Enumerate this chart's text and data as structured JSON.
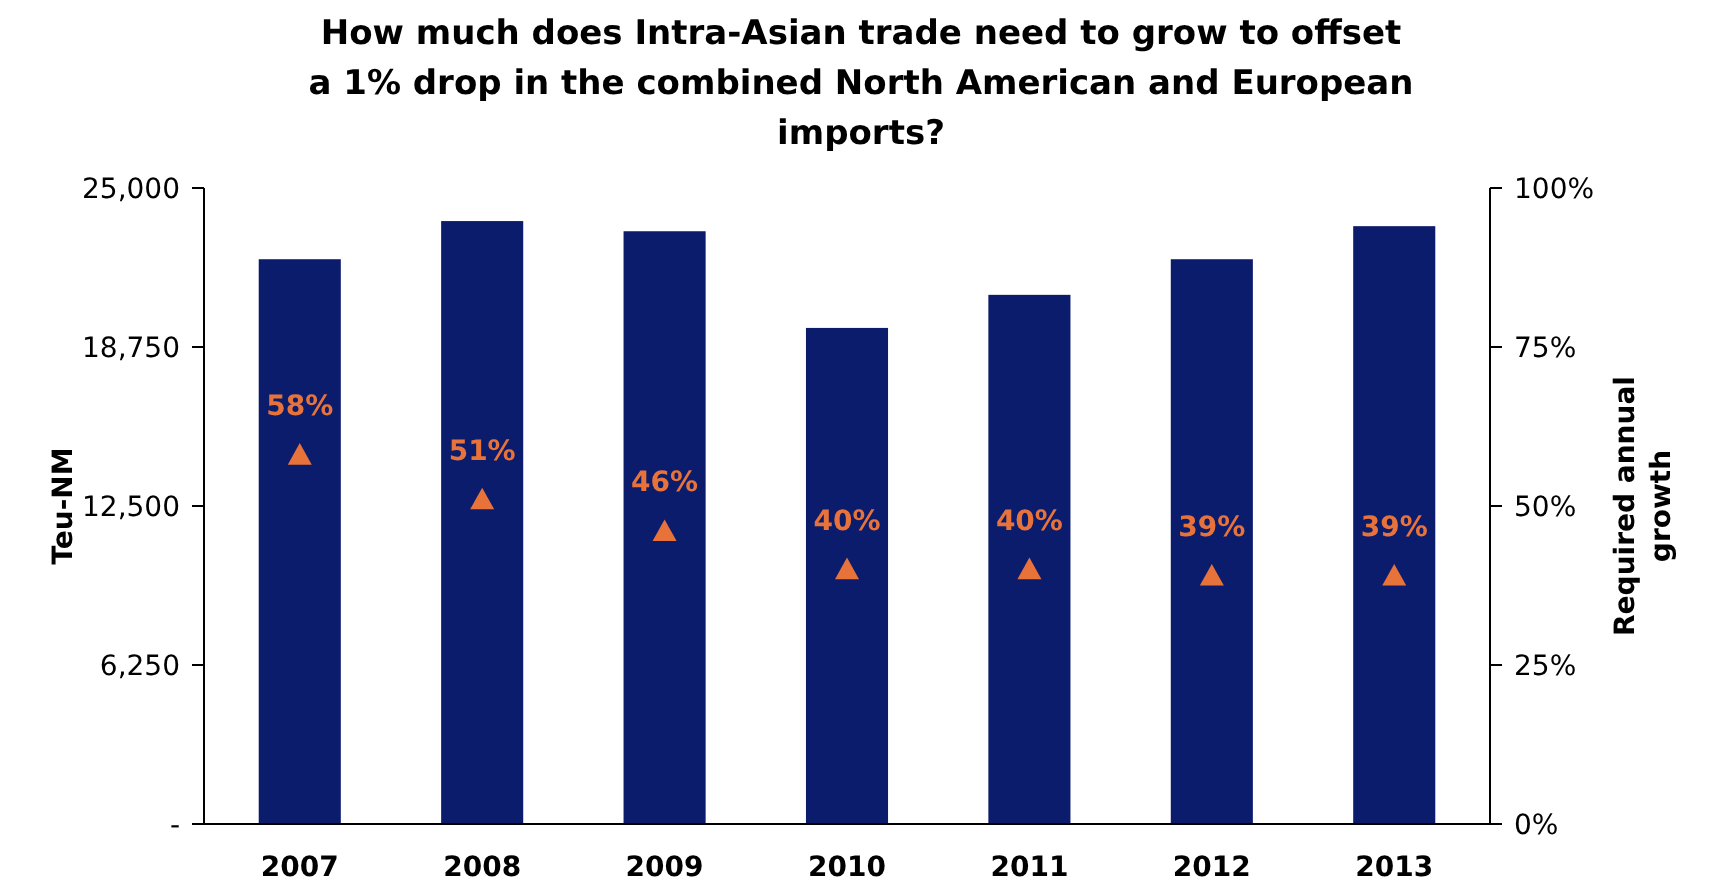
{
  "chart_data": {
    "type": "bar",
    "title": "How much does Intra-Asian trade need to grow to offset a 1% drop in the combined North American and European imports?",
    "categories": [
      "2007",
      "2008",
      "2009",
      "2010",
      "2011",
      "2012",
      "2013"
    ],
    "series": [
      {
        "color": "#0c1c6c",
        "values": [
          22200,
          23700,
          23300,
          19500,
          20800,
          22200,
          23500
        ]
      },
      {
        "type": "scatter",
        "axis": "y2",
        "color": "#e8733a",
        "marker": "triangle",
        "values": [
          58,
          51,
          46,
          40,
          40,
          39,
          39
        ],
        "value_labels": [
          "58%",
          "51%",
          "46%",
          "40%",
          "40%",
          "39%",
          "39%"
        ]
      }
    ],
    "ylabel": "Teu-NM",
    "y2label": "Required annual growth",
    "ylim": [
      0,
      25000
    ],
    "yticks": [
      {
        "value": 0,
        "label": "-"
      },
      {
        "value": 6250,
        "label": "6,250"
      },
      {
        "value": 12500,
        "label": "12,500"
      },
      {
        "value": 18750,
        "label": "18,750"
      },
      {
        "value": 25000,
        "label": "25,000"
      }
    ],
    "y2lim": [
      0,
      100
    ],
    "y2ticks": [
      {
        "value": 0,
        "label": "0%"
      },
      {
        "value": 25,
        "label": "25%"
      },
      {
        "value": 50,
        "label": "50%"
      },
      {
        "value": 75,
        "label": "75%"
      },
      {
        "value": 100,
        "label": "100%"
      }
    ],
    "grid": false
  }
}
